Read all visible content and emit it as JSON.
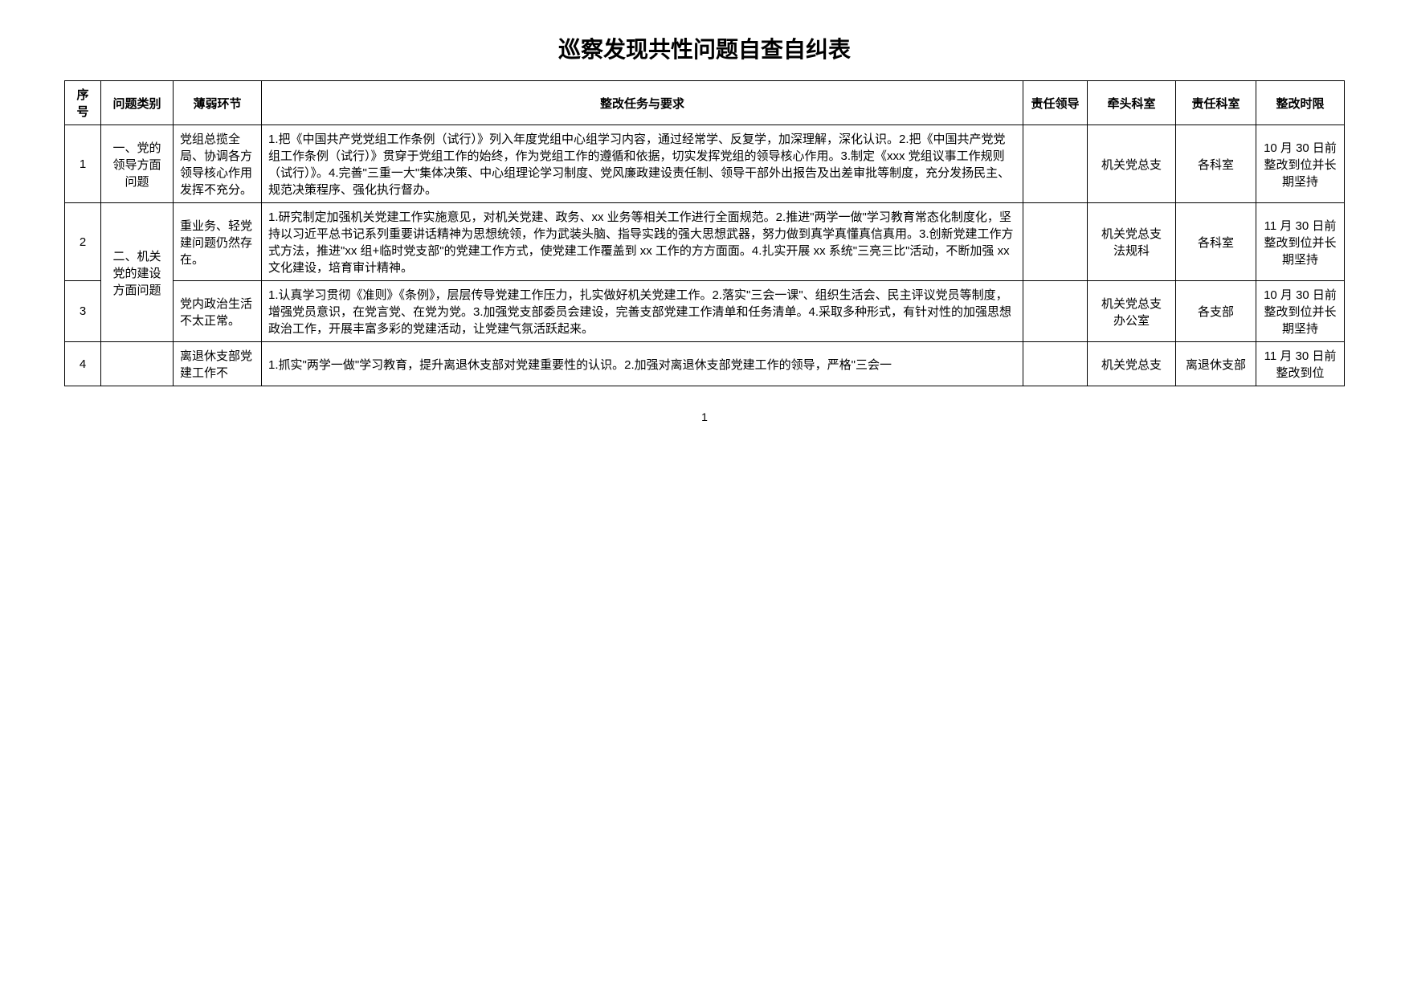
{
  "title": "巡察发现共性问题自查自纠表",
  "headers": {
    "seq": "序号",
    "category": "问题类别",
    "weak": "薄弱环节",
    "task": "整改任务与要求",
    "leader": "责任领导",
    "lead_dept": "牵头科室",
    "resp_dept": "责任科室",
    "deadline": "整改时限"
  },
  "rows": [
    {
      "seq": "1",
      "category": "一、党的领导方面问题",
      "weak": "党组总揽全局、协调各方领导核心作用发挥不充分。",
      "task": "1.把《中国共产党党组工作条例（试行）》列入年度党组中心组学习内容，通过经常学、反复学，加深理解，深化认识。2.把《中国共产党党组工作条例（试行）》贯穿于党组工作的始终，作为党组工作的遵循和依据，切实发挥党组的领导核心作用。3.制定《xxx 党组议事工作规则（试行）》。4.完善\"三重一大\"集体决策、中心组理论学习制度、党风廉政建设责任制、领导干部外出报告及出差审批等制度，充分发扬民主、规范决策程序、强化执行督办。",
      "leader": "",
      "lead_dept": "机关党总支",
      "resp_dept": "各科室",
      "deadline": "10 月 30 日前整改到位并长期坚持"
    },
    {
      "seq": "2",
      "category": "二、机关党的建设方面问题",
      "weak": "重业务、轻党建问题仍然存在。",
      "task": "1.研究制定加强机关党建工作实施意见，对机关党建、政务、xx 业务等相关工作进行全面规范。2.推进\"两学一做\"学习教育常态化制度化，坚持以习近平总书记系列重要讲话精神为思想统领，作为武装头脑、指导实践的强大思想武器，努力做到真学真懂真信真用。3.创新党建工作方式方法，推进\"xx 组+临时党支部\"的党建工作方式，使党建工作覆盖到 xx 工作的方方面面。4.扎实开展 xx 系统\"三亮三比\"活动，不断加强 xx 文化建设，培育审计精神。",
      "leader": "",
      "lead_dept": "机关党总支\n法规科",
      "resp_dept": "各科室",
      "deadline": "11 月 30 日前整改到位并长期坚持"
    },
    {
      "seq": "3",
      "category": "",
      "weak": "党内政治生活不太正常。",
      "task": "1.认真学习贯彻《准则》《条例》，层层传导党建工作压力，扎实做好机关党建工作。2.落实\"三会一课\"、组织生活会、民主评议党员等制度，增强党员意识，在党言党、在党为党。3.加强党支部委员会建设，完善支部党建工作清单和任务清单。4.采取多种形式，有针对性的加强思想政治工作，开展丰富多彩的党建活动，让党建气氛活跃起来。",
      "leader": "",
      "lead_dept": "机关党总支\n办公室",
      "resp_dept": "各支部",
      "deadline": "10 月 30 日前整改到位并长期坚持"
    },
    {
      "seq": "4",
      "category": "",
      "weak": "离退休支部党建工作不",
      "task": "1.抓实\"两学一做\"学习教育，提升离退休支部对党建重要性的认识。2.加强对离退休支部党建工作的领导，严格\"三会一",
      "leader": "",
      "lead_dept": "机关党总支",
      "resp_dept": "离退休支部",
      "deadline": "11 月 30 日前整改到位"
    }
  ],
  "page_number": "1"
}
